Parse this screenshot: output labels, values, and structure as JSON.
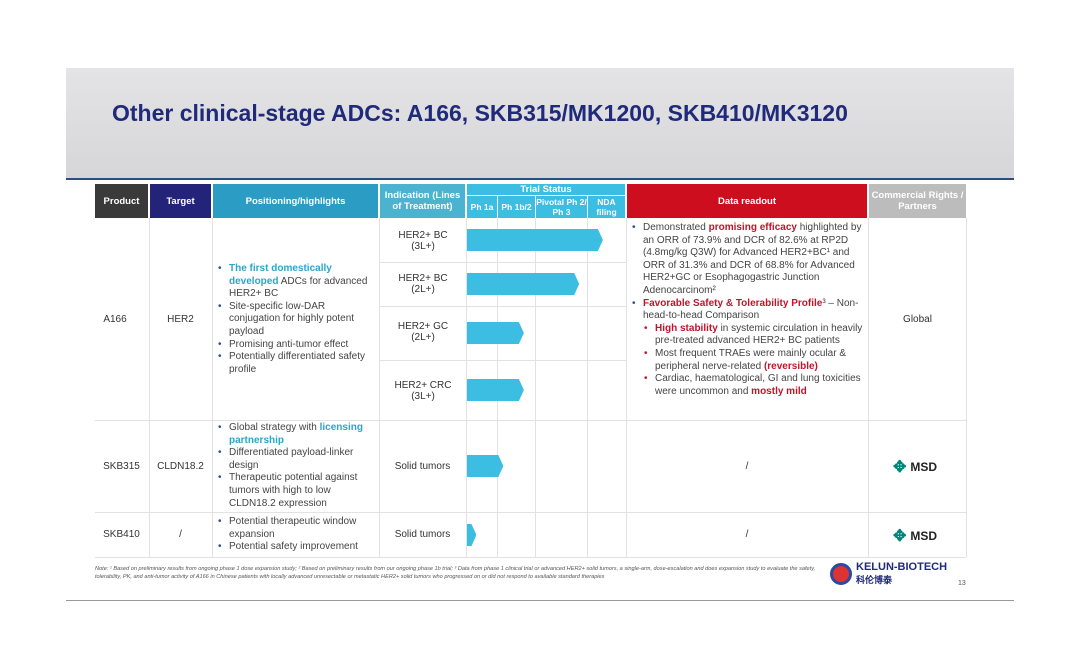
{
  "title": "Other clinical-stage ADCs: A166, SKB315/MK1200, SKB410/MK3120",
  "headers": {
    "product": "Product",
    "target": "Target",
    "positioning": "Positioning/highlights",
    "indication": "Indication (Lines of Treatment)",
    "trial_status": "Trial Status",
    "ph1a": "Ph 1a",
    "ph1b2": "Ph 1b/2",
    "pivotal": "Pivotal Ph 2/ Ph 3",
    "nda": "NDA filing",
    "readout": "Data readout",
    "rights": "Commercial Rights / Partners"
  },
  "colors": {
    "product": "#3a3a3a",
    "target": "#23237a",
    "positioning": "#2b9cc4",
    "indication": "#4bb2d0",
    "trial": "#3cbde2",
    "readout": "#cc0e1e",
    "rights": "#bcbcbc"
  },
  "rows": [
    {
      "product": "A166",
      "target": "HER2",
      "positioning": {
        "b1_hl": "The first domestically developed",
        "b1": " ADCs for advanced HER2+ BC",
        "b2": "Site-specific low-DAR conjugation for highly potent payload",
        "b3": "Promising anti-tumor effect",
        "b4": "Potentially differentiated safety profile"
      },
      "indications": [
        {
          "label": "HER2+ BC (3L+)",
          "progress": 0.86
        },
        {
          "label": "HER2+ BC (2L+)",
          "progress": 0.71
        },
        {
          "label": "HER2+ GC (2L+)",
          "progress": 0.36
        },
        {
          "label": "HER2+ CRC (3L+)",
          "progress": 0.36
        }
      ],
      "readout": {
        "b1_a": "Demonstrated ",
        "b1_hl": "promising efficacy",
        "b1_b": " highlighted by an ORR of 73.9% and DCR of 82.6% at RP2D (4.8mg/kg Q3W) for Advanced HER2+BC¹ and ORR of 31.3% and DCR of 68.8% for Advanced HER2+GC or Esophagogastric Junction Adenocarcinom²",
        "b2_hl": "Favorable Safety & Tolerability Profile",
        "b2": "³ – Non-head-to-head Comparison",
        "s1_hl": "High stability",
        "s1": " in systemic circulation in heavily pre-treated advanced HER2+ BC patients",
        "s2_a": "Most frequent TRAEs were mainly ocular & peripheral nerve-related ",
        "s2_hl": "(reversible)",
        "s3_a": "Cardiac, haematological, GI and lung toxicities were uncommon and ",
        "s3_hl": "mostly mild"
      },
      "rights": "Global"
    },
    {
      "product": "SKB315",
      "target": "CLDN18.2",
      "positioning": {
        "b1": "Global strategy with ",
        "b1_hl": "licensing partnership",
        "b2": "Differentiated payload-linker design",
        "b3": "Therapeutic potential against tumors with high to low CLDN18.2 expression"
      },
      "indications": [
        {
          "label": "Solid tumors",
          "progress": 0.23
        }
      ],
      "readout": "/",
      "rights": "MSD"
    },
    {
      "product": "SKB410",
      "target": "/",
      "positioning": {
        "b1": "Potential therapeutic window expansion",
        "b2": "Potential safety improvement"
      },
      "indications": [
        {
          "label": "Solid tumors",
          "progress": 0.06
        }
      ],
      "readout": "/",
      "rights": "MSD"
    }
  ],
  "note": "Note: ¹ Based on preliminary results from ongoing phase 1 dose expansion study; ² Based on preliminary results from our ongoing phase 1b trial; ³ Data from phase 1 clinical trial or advanced HER2+ solid tumors, a single-arm, dose-escalation and does expansion study to evaluate the safety, tolerability, PK, and anti-tumor activity of A166 in Chinese patients with locally advanced unresectable or metastatic HER2+ solid tumors who progressed on or did not respond to available standard therapies",
  "logo": {
    "name": "KELUN-BIOTECH",
    "cn": "科伦博泰"
  },
  "page": "13"
}
